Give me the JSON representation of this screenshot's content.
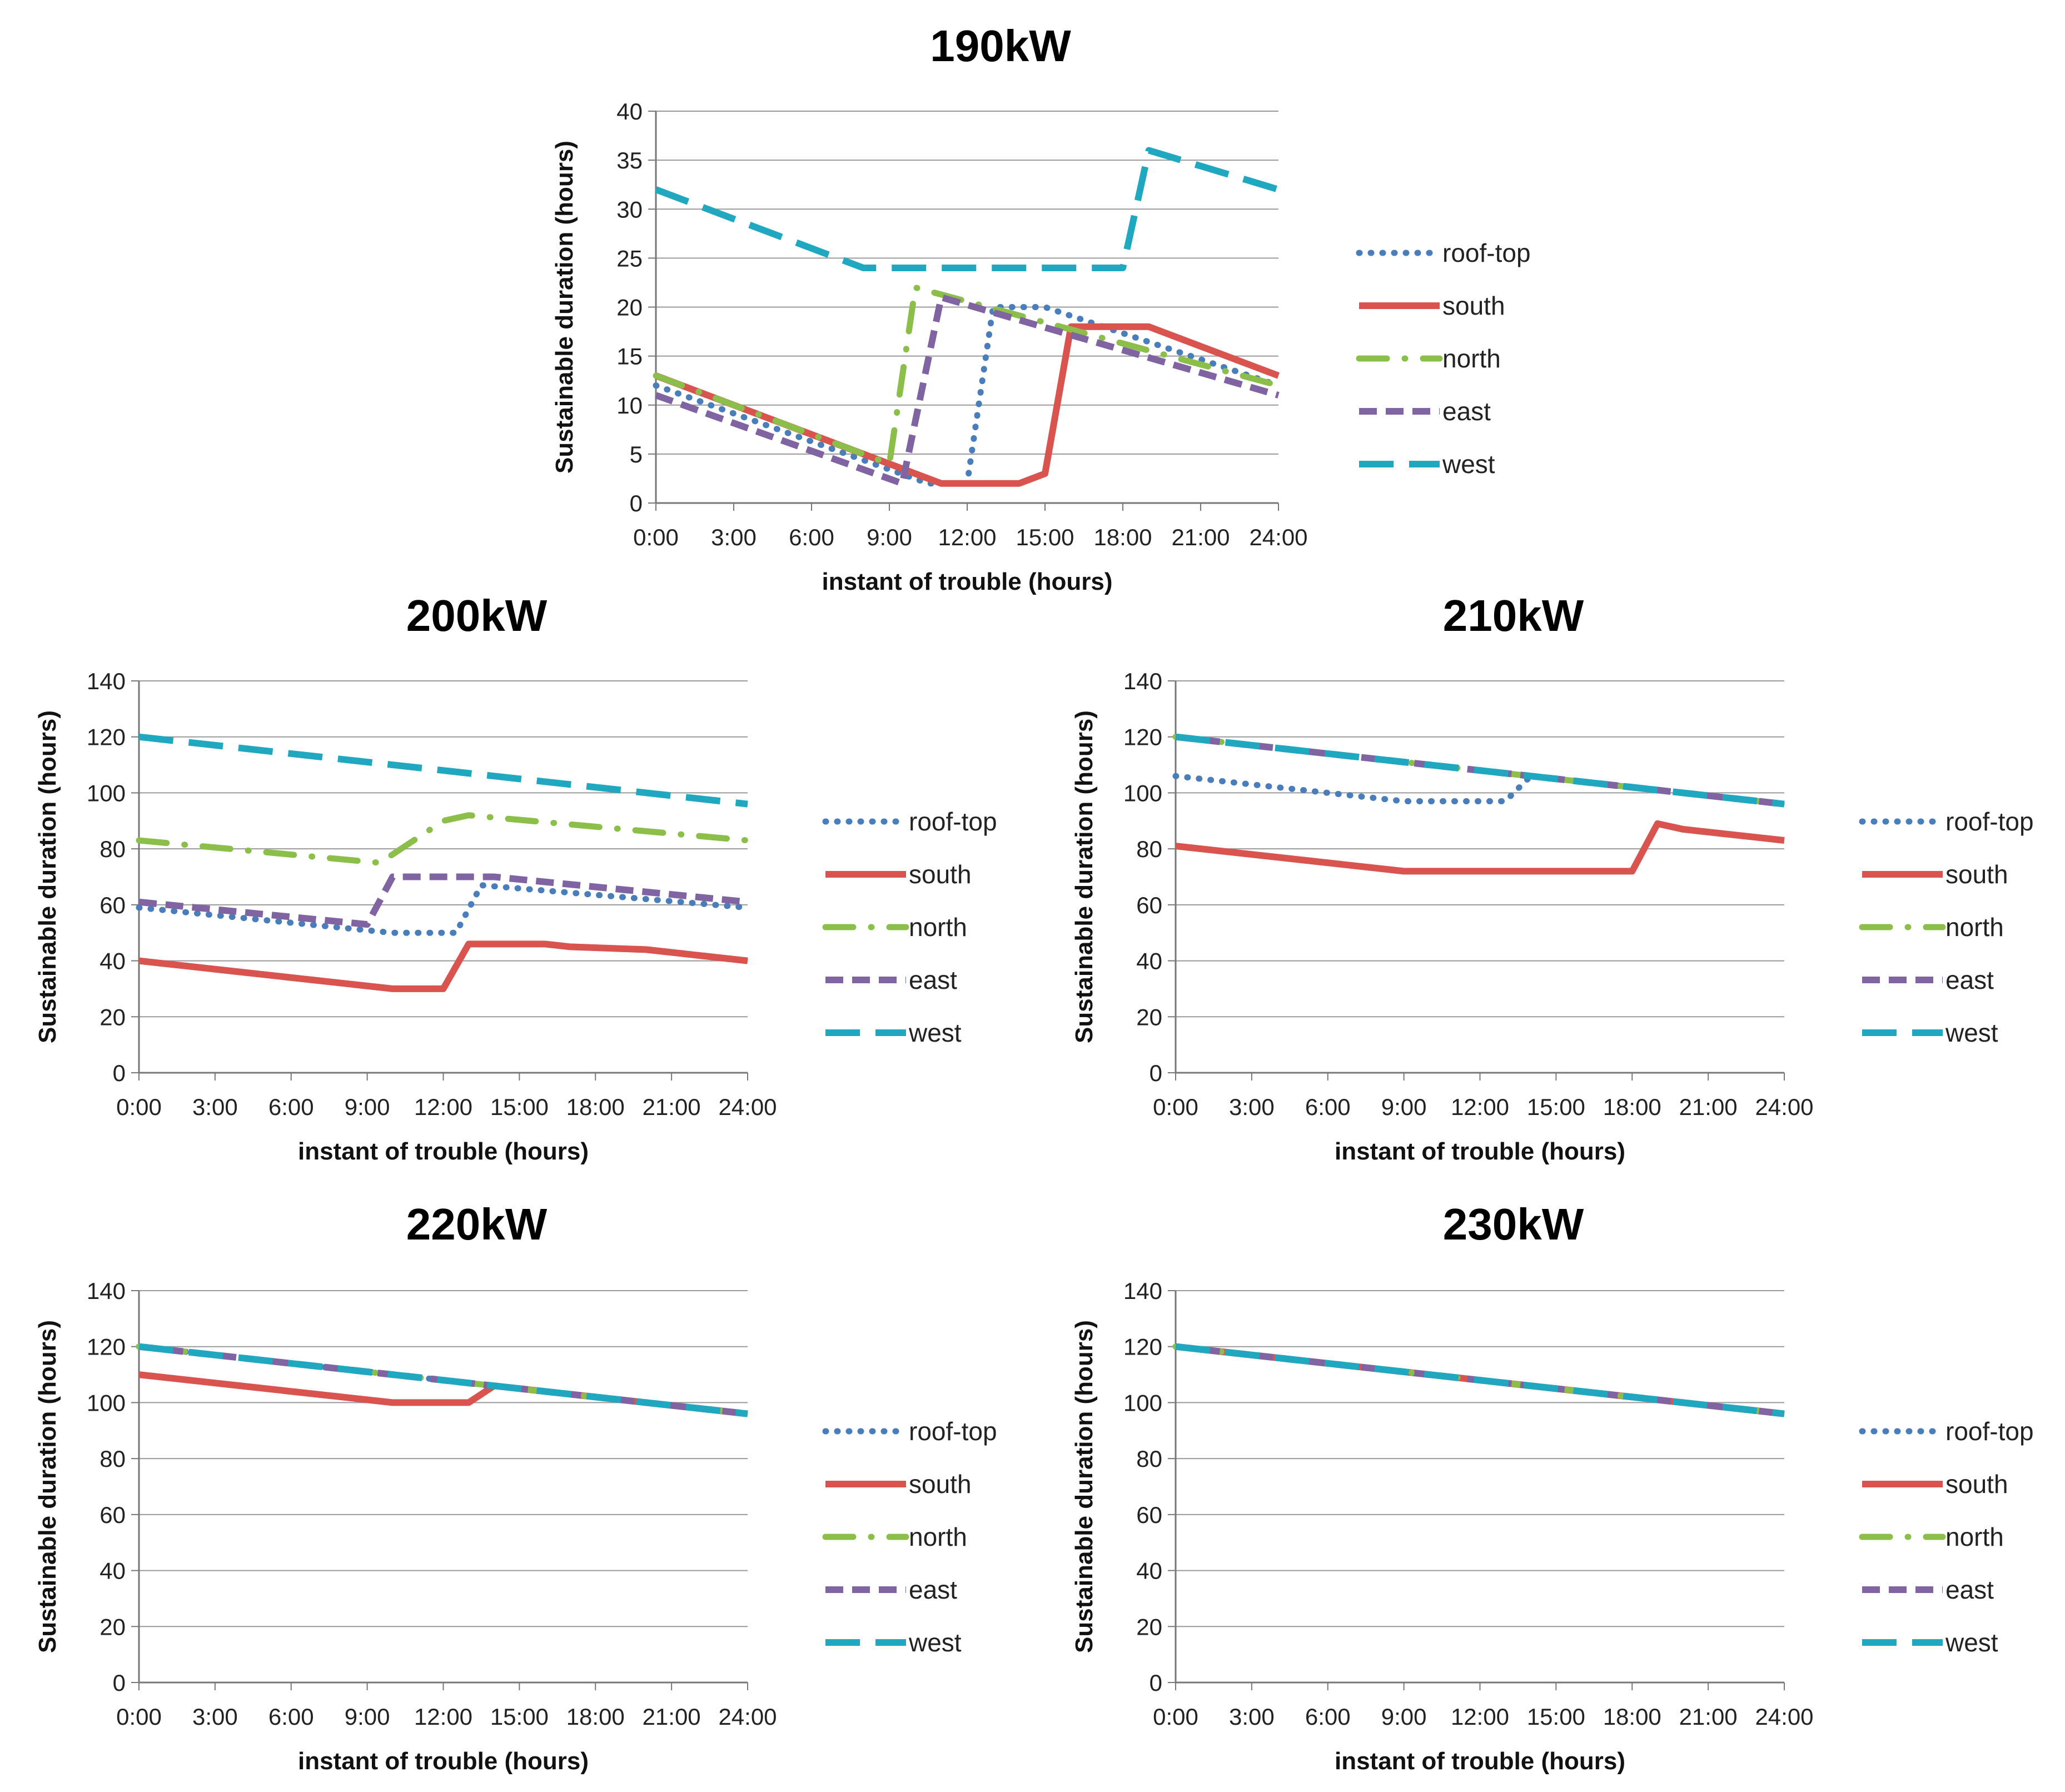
{
  "colors": {
    "roof-top": "#4a7ebb",
    "south": "#d9534f",
    "north": "#8cbf4a",
    "east": "#8064a2",
    "west": "#1fa8c0"
  },
  "chart_data": [
    {
      "type": "line",
      "title": "190kW",
      "xlabel": "instant of trouble (hours)",
      "ylabel": "Sustainable duration (hours)",
      "ylim": [
        0,
        40
      ],
      "yticks": [
        0,
        5,
        10,
        15,
        20,
        25,
        30,
        35,
        40
      ],
      "xticks": [
        "0:00",
        "3:00",
        "6:00",
        "9:00",
        "12:00",
        "15:00",
        "18:00",
        "21:00",
        "24:00"
      ],
      "xlim": [
        0,
        24
      ],
      "legend": [
        "roof-top",
        "south",
        "north",
        "east",
        "west"
      ],
      "series": [
        {
          "name": "roof-top",
          "style": "dotted",
          "points": [
            [
              0,
              12
            ],
            [
              10.5,
              2
            ],
            [
              12,
              2
            ],
            [
              13,
              20
            ],
            [
              15,
              20
            ],
            [
              24,
              12
            ]
          ]
        },
        {
          "name": "south",
          "style": "solid",
          "points": [
            [
              0,
              13
            ],
            [
              11,
              2
            ],
            [
              14,
              2
            ],
            [
              15,
              3
            ],
            [
              16,
              18
            ],
            [
              19,
              18
            ],
            [
              24,
              13
            ]
          ]
        },
        {
          "name": "north",
          "style": "dashdot",
          "points": [
            [
              0,
              13
            ],
            [
              9,
              4
            ],
            [
              10,
              22
            ],
            [
              24,
              12
            ]
          ]
        },
        {
          "name": "east",
          "style": "dashed",
          "points": [
            [
              0,
              11
            ],
            [
              9.5,
              2
            ],
            [
              11,
              21
            ],
            [
              24,
              11
            ]
          ]
        },
        {
          "name": "west",
          "style": "longdash",
          "points": [
            [
              0,
              32
            ],
            [
              8,
              24
            ],
            [
              18,
              24
            ],
            [
              19,
              36
            ],
            [
              24,
              32
            ]
          ]
        }
      ]
    },
    {
      "type": "line",
      "title": "200kW",
      "xlabel": "instant of trouble (hours)",
      "ylabel": "Sustainable duration (hours)",
      "ylim": [
        0,
        140
      ],
      "yticks": [
        0,
        20,
        40,
        60,
        80,
        100,
        120,
        140
      ],
      "xticks": [
        "0:00",
        "3:00",
        "6:00",
        "9:00",
        "12:00",
        "15:00",
        "18:00",
        "21:00",
        "24:00"
      ],
      "xlim": [
        0,
        24
      ],
      "legend": [
        "roof-top",
        "south",
        "north",
        "east",
        "west"
      ],
      "series": [
        {
          "name": "roof-top",
          "style": "dotted",
          "points": [
            [
              0,
              59
            ],
            [
              10,
              50
            ],
            [
              12.5,
              50
            ],
            [
              13.5,
              67
            ],
            [
              24,
              59
            ]
          ]
        },
        {
          "name": "south",
          "style": "solid",
          "points": [
            [
              0,
              40
            ],
            [
              10,
              30
            ],
            [
              12,
              30
            ],
            [
              13,
              46
            ],
            [
              16,
              46
            ],
            [
              17,
              45
            ],
            [
              20,
              44
            ],
            [
              24,
              40
            ]
          ]
        },
        {
          "name": "north",
          "style": "dashdot",
          "points": [
            [
              0,
              83
            ],
            [
              9.5,
              75
            ],
            [
              12,
              90
            ],
            [
              13,
              92
            ],
            [
              24,
              83
            ]
          ]
        },
        {
          "name": "east",
          "style": "dashed",
          "points": [
            [
              0,
              61
            ],
            [
              9,
              53
            ],
            [
              10,
              70
            ],
            [
              14,
              70
            ],
            [
              24,
              61
            ]
          ]
        },
        {
          "name": "west",
          "style": "longdash",
          "points": [
            [
              0,
              120
            ],
            [
              24,
              96
            ]
          ]
        }
      ]
    },
    {
      "type": "line",
      "title": "210kW",
      "xlabel": "instant of trouble (hours)",
      "ylabel": "Sustainable duration (hours)",
      "ylim": [
        0,
        140
      ],
      "yticks": [
        0,
        20,
        40,
        60,
        80,
        100,
        120,
        140
      ],
      "xticks": [
        "0:00",
        "3:00",
        "6:00",
        "9:00",
        "12:00",
        "15:00",
        "18:00",
        "21:00",
        "24:00"
      ],
      "xlim": [
        0,
        24
      ],
      "legend": [
        "roof-top",
        "south",
        "north",
        "east",
        "west"
      ],
      "series": [
        {
          "name": "roof-top",
          "style": "dotted",
          "points": [
            [
              0,
              106
            ],
            [
              9,
              97
            ],
            [
              13,
              97
            ],
            [
              14,
              106
            ],
            [
              24,
              96
            ]
          ]
        },
        {
          "name": "south",
          "style": "solid",
          "points": [
            [
              0,
              81
            ],
            [
              9,
              72
            ],
            [
              18,
              72
            ],
            [
              19,
              89
            ],
            [
              20,
              87
            ],
            [
              24,
              83
            ]
          ]
        },
        {
          "name": "north",
          "style": "dashdot",
          "points": [
            [
              0,
              120
            ],
            [
              24,
              96
            ]
          ]
        },
        {
          "name": "east",
          "style": "dashed",
          "points": [
            [
              0,
              120
            ],
            [
              24,
              96
            ]
          ]
        },
        {
          "name": "west",
          "style": "longdash",
          "points": [
            [
              0,
              120
            ],
            [
              24,
              96
            ]
          ]
        }
      ]
    },
    {
      "type": "line",
      "title": "220kW",
      "xlabel": "instant of trouble (hours)",
      "ylabel": "Sustainable duration (hours)",
      "ylim": [
        0,
        140
      ],
      "yticks": [
        0,
        20,
        40,
        60,
        80,
        100,
        120,
        140
      ],
      "xticks": [
        "0:00",
        "3:00",
        "6:00",
        "9:00",
        "12:00",
        "15:00",
        "18:00",
        "21:00",
        "24:00"
      ],
      "xlim": [
        0,
        24
      ],
      "legend": [
        "roof-top",
        "south",
        "north",
        "east",
        "west"
      ],
      "series": [
        {
          "name": "roof-top",
          "style": "dotted",
          "points": [
            [
              0,
              120
            ],
            [
              24,
              96
            ]
          ]
        },
        {
          "name": "south",
          "style": "solid",
          "points": [
            [
              0,
              110
            ],
            [
              10,
              100
            ],
            [
              13,
              100
            ],
            [
              14,
              106
            ],
            [
              24,
              96
            ]
          ]
        },
        {
          "name": "north",
          "style": "dashdot",
          "points": [
            [
              0,
              120
            ],
            [
              24,
              96
            ]
          ]
        },
        {
          "name": "east",
          "style": "dashed",
          "points": [
            [
              0,
              120
            ],
            [
              24,
              96
            ]
          ]
        },
        {
          "name": "west",
          "style": "longdash",
          "points": [
            [
              0,
              120
            ],
            [
              24,
              96
            ]
          ]
        }
      ]
    },
    {
      "type": "line",
      "title": "230kW",
      "xlabel": "instant of trouble (hours)",
      "ylabel": "Sustainable duration (hours)",
      "ylim": [
        0,
        140
      ],
      "yticks": [
        0,
        20,
        40,
        60,
        80,
        100,
        120,
        140
      ],
      "xticks": [
        "0:00",
        "3:00",
        "6:00",
        "9:00",
        "12:00",
        "15:00",
        "18:00",
        "21:00",
        "24:00"
      ],
      "xlim": [
        0,
        24
      ],
      "legend": [
        "roof-top",
        "south",
        "north",
        "east",
        "west"
      ],
      "series": [
        {
          "name": "roof-top",
          "style": "dotted",
          "points": [
            [
              0,
              120
            ],
            [
              24,
              96
            ]
          ]
        },
        {
          "name": "south",
          "style": "solid",
          "points": [
            [
              0,
              120
            ],
            [
              24,
              96
            ]
          ]
        },
        {
          "name": "north",
          "style": "dashdot",
          "points": [
            [
              0,
              120
            ],
            [
              24,
              96
            ]
          ]
        },
        {
          "name": "east",
          "style": "dashed",
          "points": [
            [
              0,
              120
            ],
            [
              24,
              96
            ]
          ]
        },
        {
          "name": "west",
          "style": "longdash",
          "points": [
            [
              0,
              120
            ],
            [
              24,
              96
            ]
          ]
        }
      ]
    }
  ]
}
